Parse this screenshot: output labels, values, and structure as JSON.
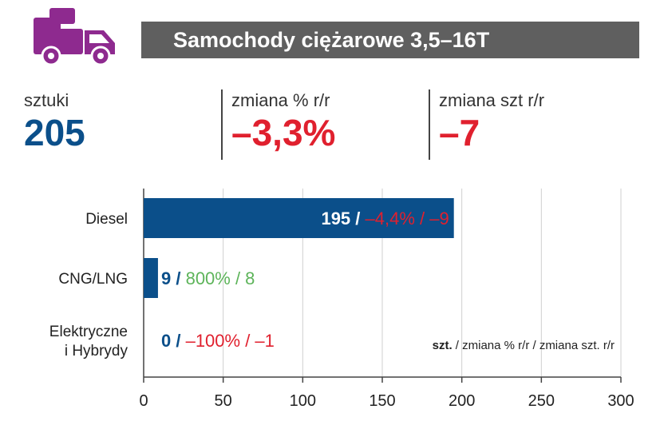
{
  "title": "Samochody ciężarowe 3,5–16T",
  "stats": [
    {
      "label": "sztuki",
      "value": "205"
    },
    {
      "label": "zmiana % r/r",
      "value": "–3,3%"
    },
    {
      "label": "zmiana szt r/r",
      "value": "–7"
    }
  ],
  "colors": {
    "title_bg": "#5f5f5f",
    "icon": "#8e2a8f",
    "primary": "#0b4f8a",
    "negative": "#e0202e",
    "positive": "#5db45a"
  },
  "icon": "truck-icon",
  "chart_data": {
    "type": "bar",
    "orientation": "horizontal",
    "categories": [
      "Diesel",
      "CNG/LNG",
      "Elektryczne\ni Hybrydy"
    ],
    "values": [
      195,
      9,
      0
    ],
    "changes_pct": [
      "–4,4%",
      "800%",
      "–100%"
    ],
    "changes_units": [
      "–9",
      "8",
      "–1"
    ],
    "xlim": [
      0,
      300
    ],
    "xticks": [
      "0",
      "50",
      "100",
      "150",
      "200",
      "250",
      "300"
    ],
    "grid": true,
    "legend": {
      "bold": "szt.",
      "rest": " / zmiana % r/r / zmiana szt. r/r"
    }
  }
}
